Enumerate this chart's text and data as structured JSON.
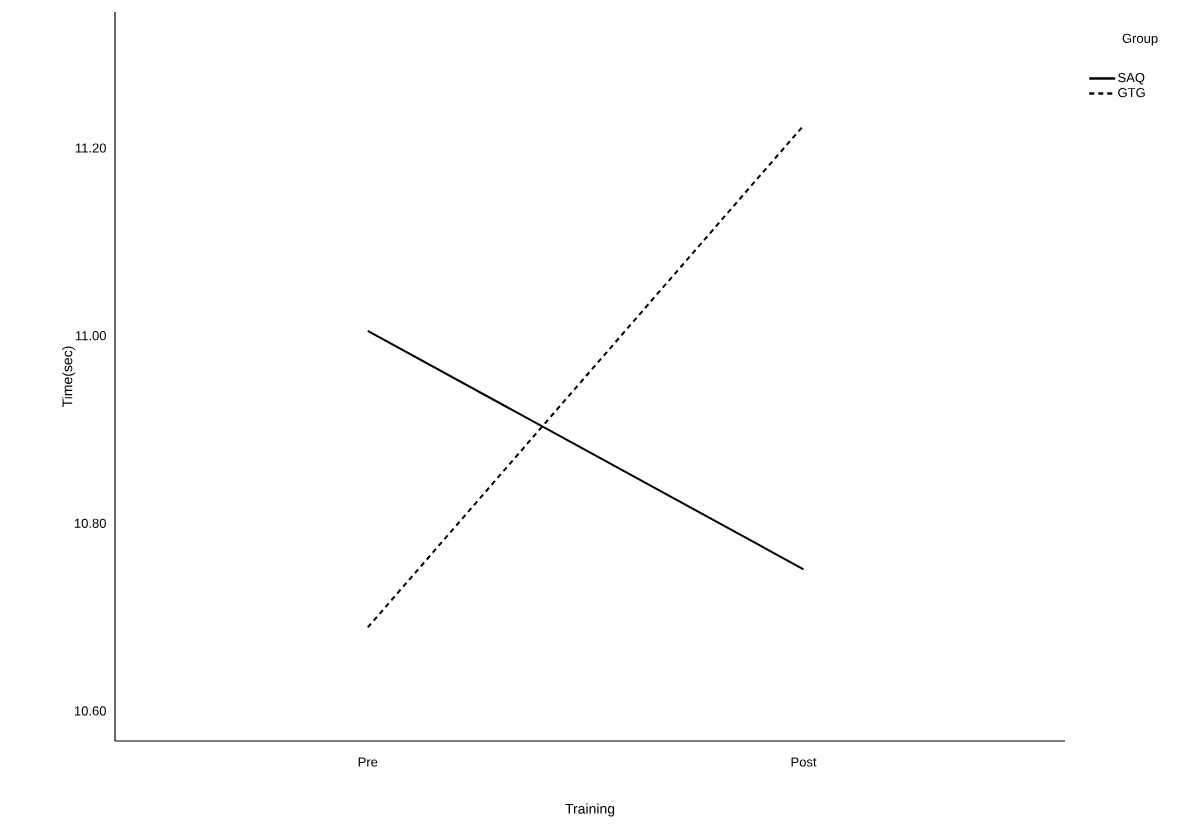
{
  "chart_data": {
    "type": "line",
    "xlabel": "Training",
    "ylabel": "Time(sec)",
    "legend_title": "Group",
    "categories": [
      "Pre",
      "Post"
    ],
    "series": [
      {
        "name": "SAQ",
        "color": "#000000",
        "values": [
          11.005,
          10.751
        ],
        "line_style": "solid"
      },
      {
        "name": "GTG",
        "color": "#000000",
        "values": [
          10.689,
          11.224
        ],
        "line_style": "dashed"
      }
    ],
    "ylim": [
      10.568,
      11.345
    ],
    "yticks": [
      {
        "value": 10.6,
        "label": "10.60"
      },
      {
        "value": 10.8,
        "label": "10.80"
      },
      {
        "value": 11.0,
        "label": "11.00"
      },
      {
        "value": 11.2,
        "label": "11.20"
      }
    ],
    "grid": false,
    "legend": "top right",
    "marker": "none"
  }
}
